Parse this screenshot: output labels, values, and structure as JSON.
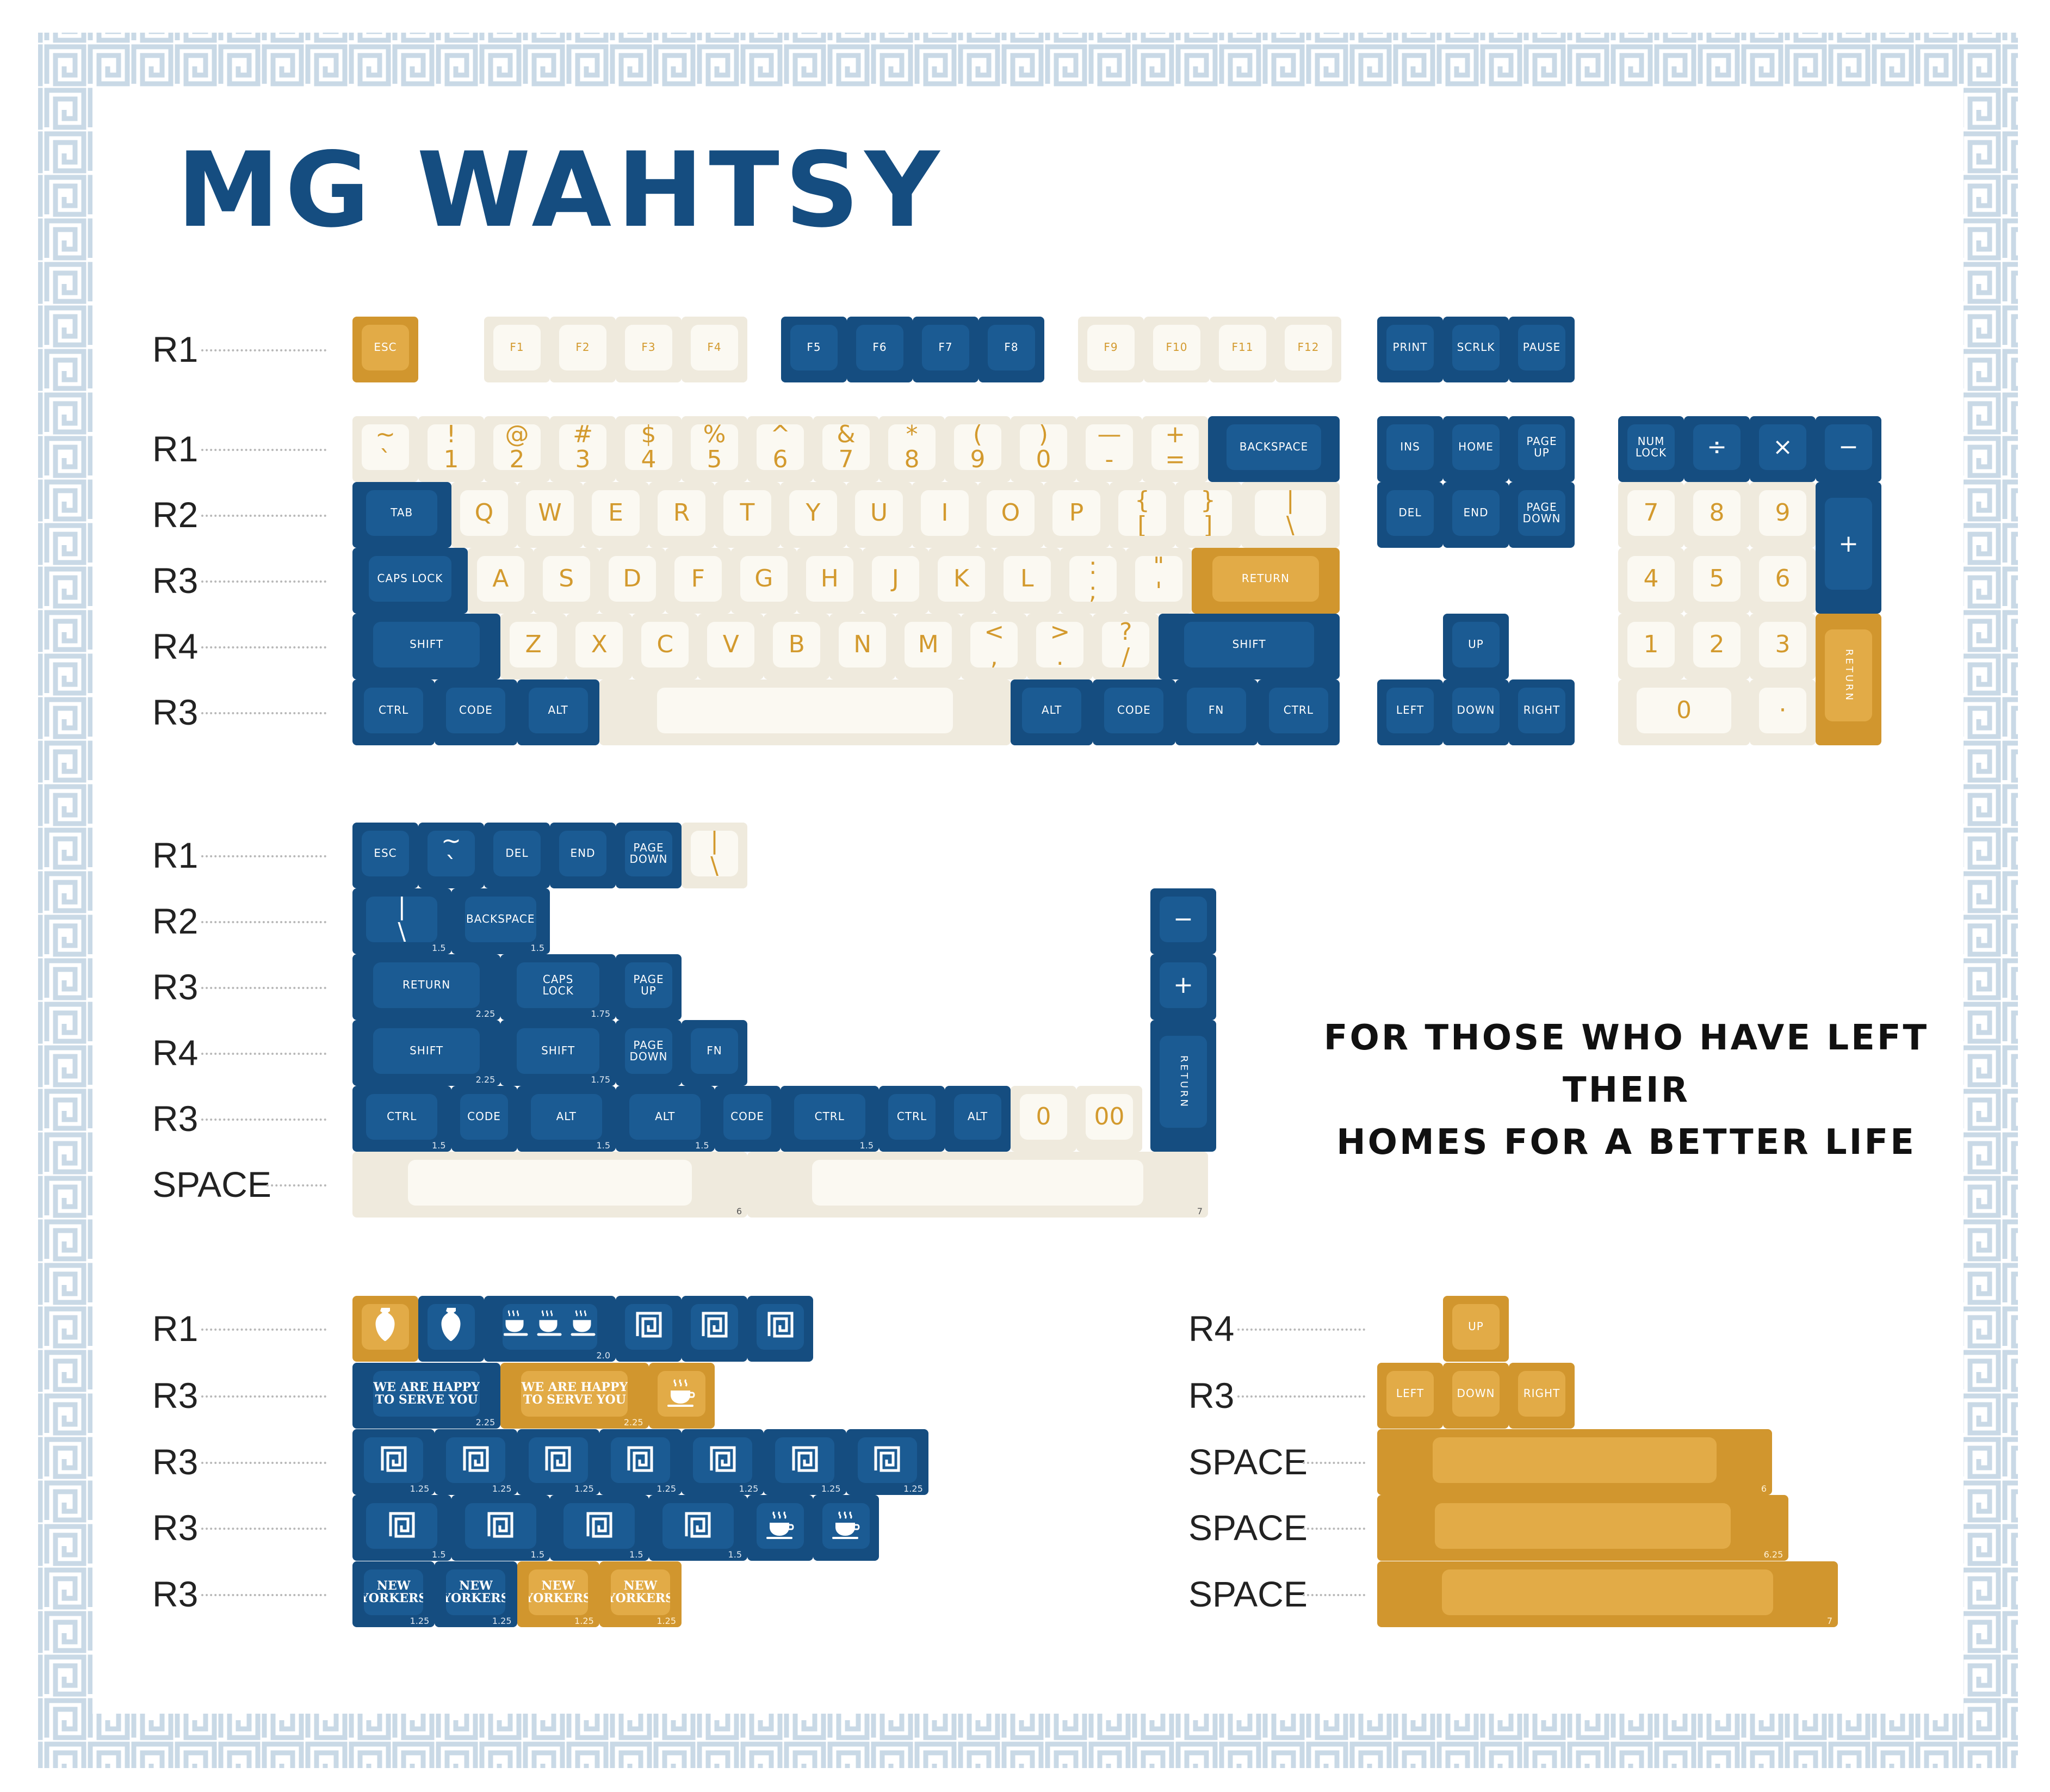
{
  "title": "MG WAHTSY",
  "motto": [
    "FOR THOSE WHO HAVE LEFT THEIR",
    "HOMES FOR A BETTER LIFE"
  ],
  "colors": {
    "navy": "#154d80",
    "navy_top": "#1b5b93",
    "cream": "#efeadd",
    "cream_top": "#fbf9f2",
    "gold": "#d1962e",
    "gold_top": "#e2ab47",
    "border": "#c9d9e6",
    "legend_gold": "#d39a2e"
  },
  "row_labels": {
    "main": [
      "R1",
      "R1",
      "R2",
      "R3",
      "R4",
      "R3"
    ],
    "mods": [
      "R1",
      "R2",
      "R3",
      "R4",
      "R3",
      "SPACE"
    ],
    "novelty": [
      "R1",
      "R3",
      "R3",
      "R3",
      "R3"
    ],
    "gold": [
      "R4",
      "R3",
      "SPACE",
      "SPACE",
      "SPACE"
    ]
  },
  "keys": {
    "fn_row": [
      "ESC",
      "F1",
      "F2",
      "F3",
      "F4",
      "F5",
      "F6",
      "F7",
      "F8",
      "F9",
      "F10",
      "F11",
      "F12",
      "PRINT",
      "SCRLK",
      "PAUSE"
    ],
    "number_row": [
      "~\n`",
      "!\n1",
      "@\n2",
      "#\n3",
      "$\n4",
      "%\n5",
      "^\n6",
      "&\n7",
      "*\n8",
      "(\n9",
      ")\n0",
      "—\n-",
      "+\n=",
      "BACKSPACE"
    ],
    "qwerty_row": [
      "TAB",
      "Q",
      "W",
      "E",
      "R",
      "T",
      "Y",
      "U",
      "I",
      "O",
      "P",
      "{\n[",
      "}\n]",
      "|\n\\"
    ],
    "home_row": [
      "CAPS LOCK",
      "A",
      "S",
      "D",
      "F",
      "G",
      "H",
      "J",
      "K",
      "L",
      ":\n;",
      "\"\n'",
      "RETURN"
    ],
    "shift_row": [
      "SHIFT",
      "Z",
      "X",
      "C",
      "V",
      "B",
      "N",
      "M",
      "<\n,",
      ">\n.",
      "?\n/",
      "SHIFT"
    ],
    "bottom_row": [
      "CTRL",
      "CODE",
      "ALT",
      "",
      "ALT",
      "CODE",
      "FN",
      "CTRL"
    ],
    "nav": [
      "INS",
      "HOME",
      "PAGE\nUP",
      "DEL",
      "END",
      "PAGE\nDOWN",
      "UP",
      "LEFT",
      "DOWN",
      "RIGHT"
    ],
    "numpad": [
      "NUM\nLOCK",
      "÷",
      "×",
      "−",
      "7",
      "8",
      "9",
      "+",
      "4",
      "5",
      "6",
      "1",
      "2",
      "3",
      "RETURN",
      "0",
      "·"
    ],
    "mods_r1": [
      "ESC",
      "~\n`",
      "DEL",
      "END",
      "PAGE\nDOWN",
      "|\n\\"
    ],
    "mods_r2": [
      "|\n\\",
      "BACKSPACE"
    ],
    "mods_r3": [
      "RETURN",
      "CAPS\nLOCK",
      "PAGE\nUP"
    ],
    "mods_r4": [
      "SHIFT",
      "SHIFT",
      "PAGE\nDOWN",
      "FN"
    ],
    "mods_r5": [
      "CTRL",
      "CODE",
      "ALT",
      "ALT",
      "CODE",
      "CTRL",
      "CTRL",
      "ALT",
      "0",
      "00"
    ],
    "mods_side": [
      "−",
      "+",
      "RETURN"
    ],
    "mods_space": [
      "",
      ""
    ],
    "novelty_r3a": [
      "WE ARE HAPPY\nTO SERVE YOU",
      "WE ARE HAPPY\nTO SERVE YOU"
    ],
    "novelty_r3d": [
      "NEW\nYORKERS",
      "NEW\nYORKERS",
      "NEW\nYORKERS",
      "NEW\nYORKERS"
    ],
    "gold_nav": [
      "UP",
      "LEFT",
      "DOWN",
      "RIGHT"
    ]
  },
  "unit_labels": {
    "mods_r2": [
      "1.5",
      "1.5"
    ],
    "mods_r3": [
      "2.25",
      "1.75"
    ],
    "mods_r4": [
      "2.25",
      "1.75"
    ],
    "mods_r5": [
      "1.5",
      "1.5",
      "1.5",
      "1.5"
    ],
    "mods_space": [
      "6",
      "7"
    ],
    "novelty_r1": [
      "2.0"
    ],
    "novelty_r3a": [
      "2.25",
      "2.25"
    ],
    "novelty_r3b": [
      "1.25",
      "1.25",
      "1.25",
      "1.25",
      "1.25",
      "1.25",
      "1.25"
    ],
    "novelty_r3c": [
      "1.5",
      "1.5",
      "1.5",
      "1.5"
    ],
    "novelty_r3d": [
      "1.25",
      "1.25",
      "1.25",
      "1.25"
    ],
    "gold_space": [
      "6",
      "6.25",
      "7"
    ]
  },
  "icons": {
    "novelty_r1": [
      "amphora-icon",
      "amphora-icon",
      "coffee-cups-icon",
      "greek-key-icon",
      "greek-key-icon",
      "greek-key-icon"
    ],
    "novelty_r3a_extra": "coffee-cup-icon",
    "novelty_r3b": "greek-key-icon",
    "novelty_r3c": [
      "greek-key-icon",
      "greek-key-icon",
      "greek-key-icon",
      "greek-key-icon",
      "coffee-cup-icon",
      "coffee-cup-icon"
    ]
  }
}
